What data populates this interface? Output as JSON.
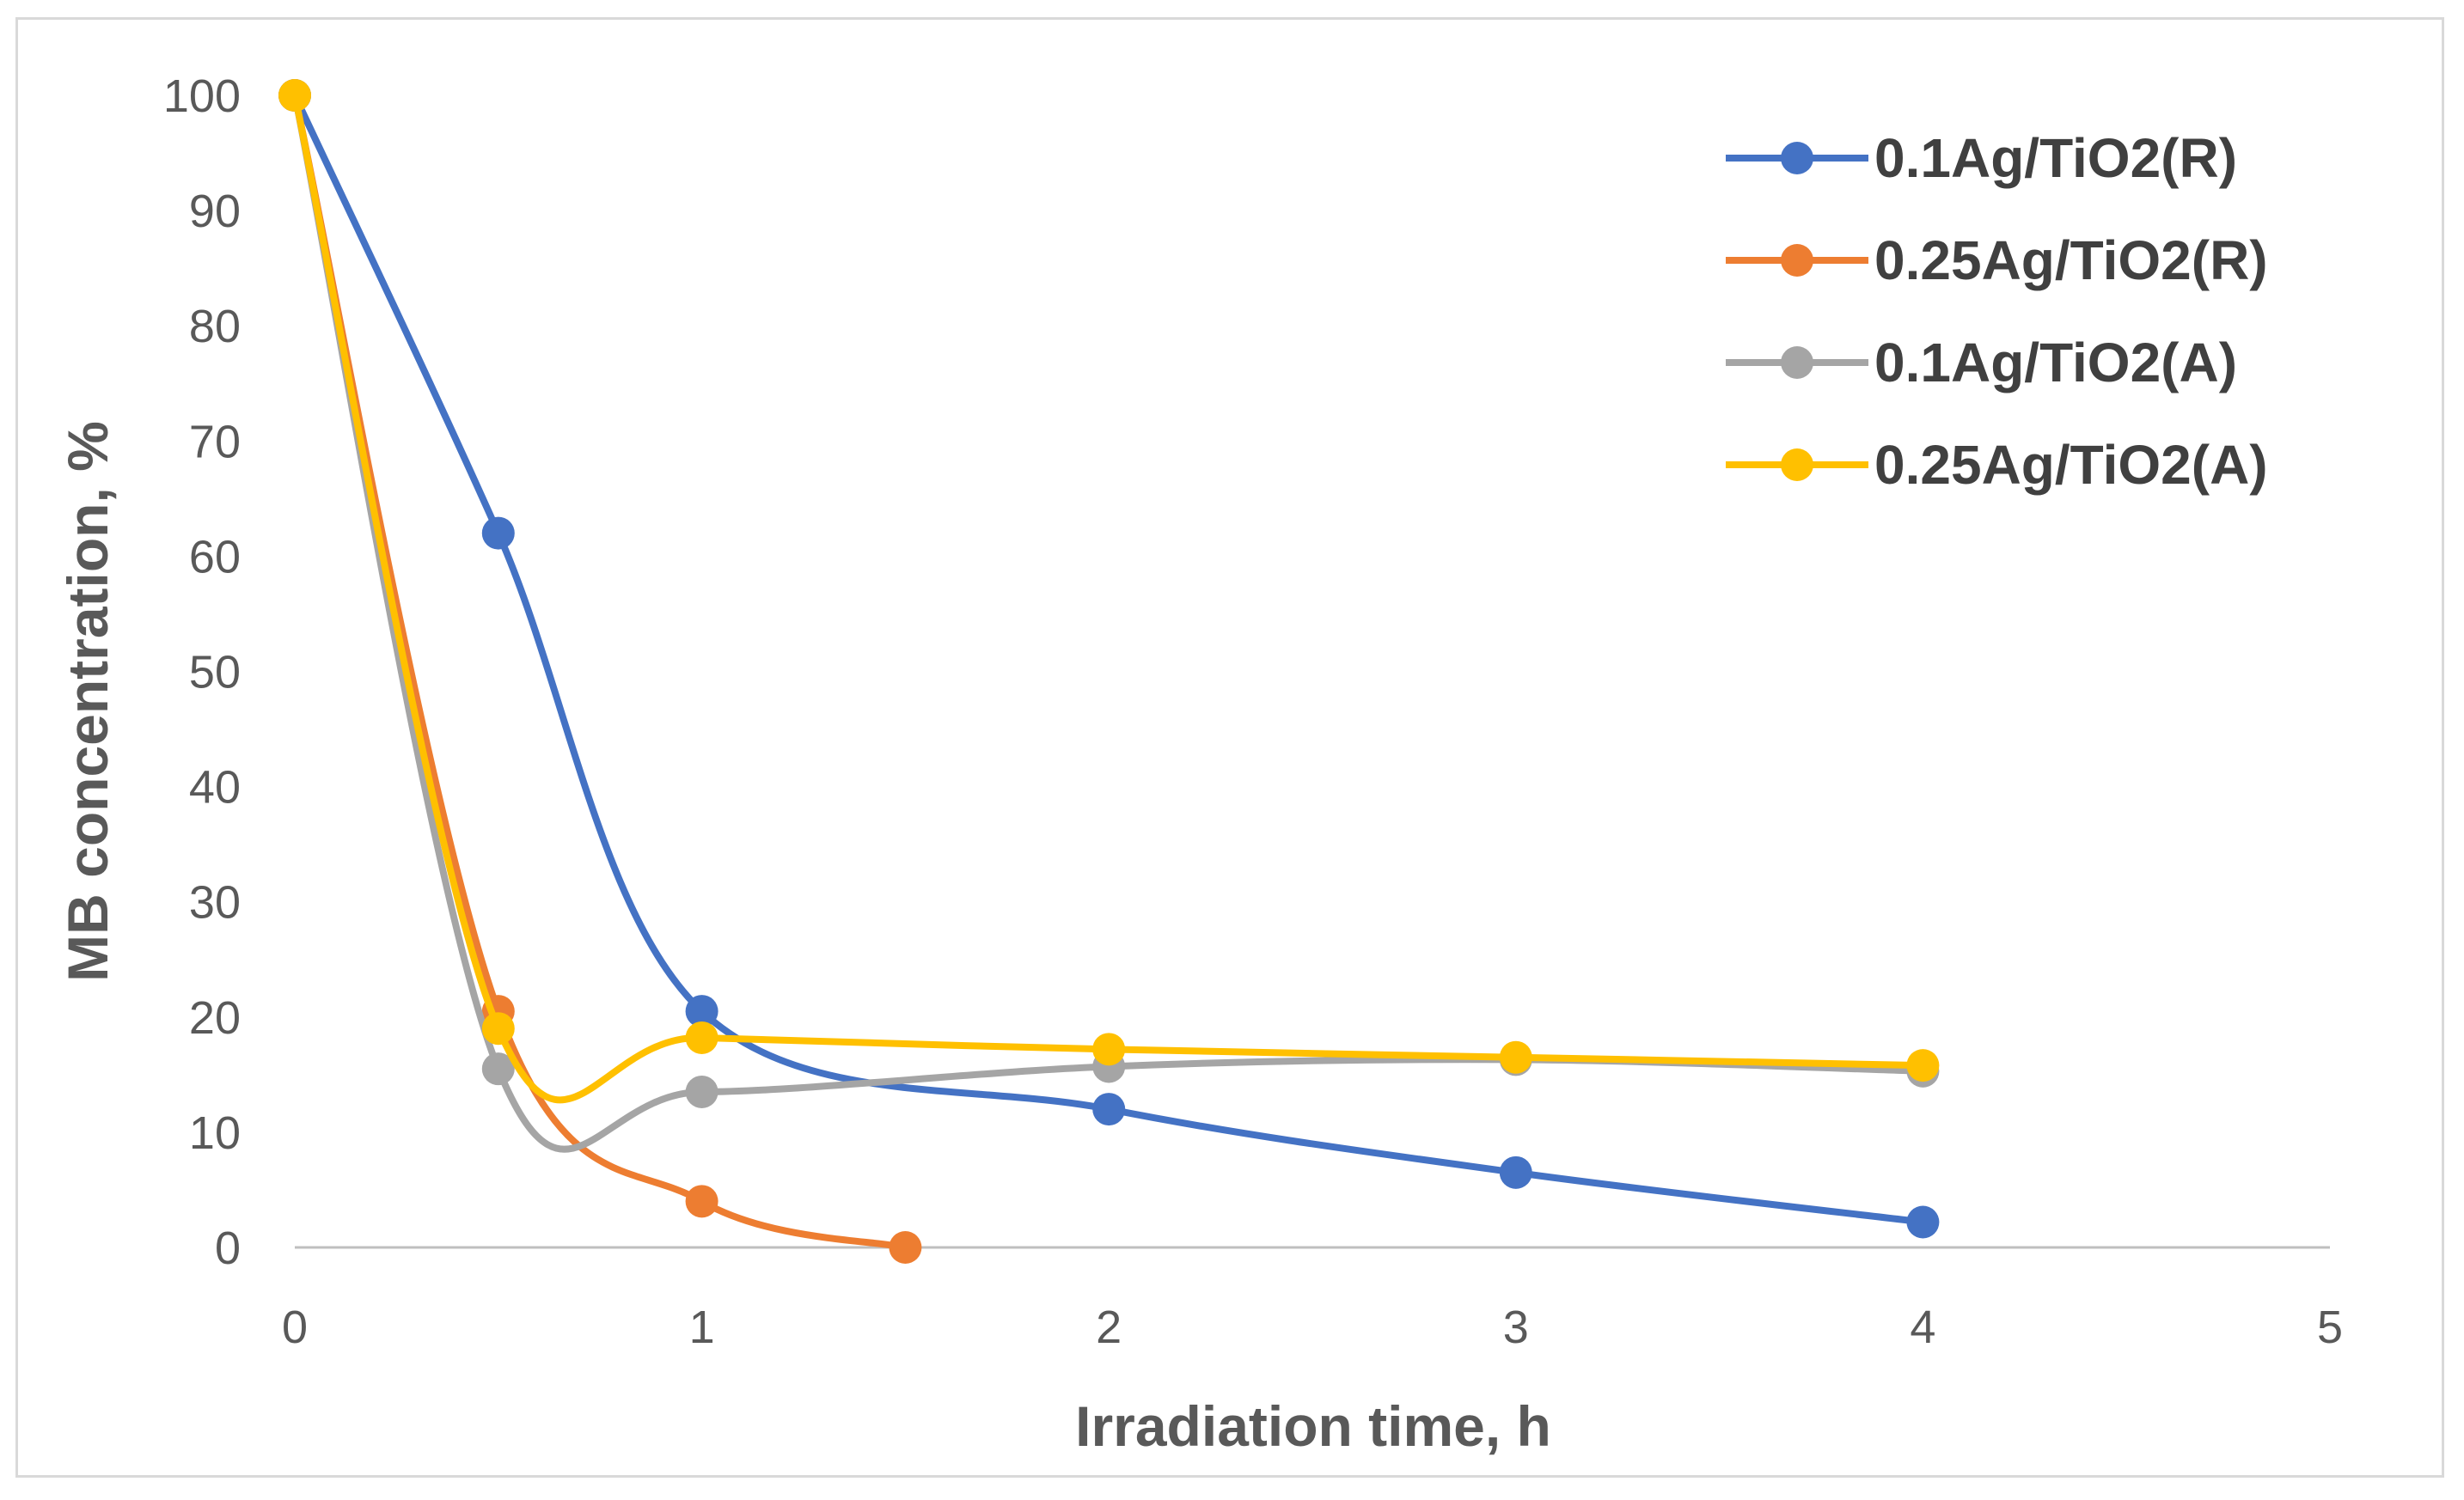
{
  "chart_data": {
    "type": "line",
    "smooth": true,
    "title": "",
    "xlabel": "Irradiation time, h",
    "ylabel": "MB concentration, %",
    "xlim": [
      0,
      5
    ],
    "ylim": [
      0,
      100
    ],
    "xticks": [
      "0",
      "1",
      "2",
      "3",
      "4",
      "5"
    ],
    "yticks": [
      "0",
      "10",
      "20",
      "30",
      "40",
      "50",
      "60",
      "70",
      "80",
      "90",
      "100"
    ],
    "grid": false,
    "legend_position": "top-right",
    "series": [
      {
        "name": "0.1Ag/TiO2(R)",
        "color": "#4472c4",
        "x": [
          0,
          0.5,
          1,
          2,
          3,
          4
        ],
        "y": [
          100,
          62,
          20.5,
          12,
          6.5,
          2.2
        ]
      },
      {
        "name": "0.25Ag/TiO2(R)",
        "color": "#ed7d31",
        "x": [
          0,
          0.5,
          1,
          1.5
        ],
        "y": [
          100,
          20.5,
          4,
          0
        ]
      },
      {
        "name": "0.1Ag/TiO2(A)",
        "color": "#a5a5a5",
        "x": [
          0,
          0.5,
          1,
          2,
          3,
          4
        ],
        "y": [
          100,
          15.5,
          13.5,
          15.7,
          16.3,
          15.3
        ]
      },
      {
        "name": "0.25Ag/TiO2(A)",
        "color": "#ffc000",
        "x": [
          0,
          0.5,
          1,
          2,
          3,
          4
        ],
        "y": [
          100,
          19,
          18.2,
          17.2,
          16.5,
          15.8
        ]
      }
    ]
  }
}
